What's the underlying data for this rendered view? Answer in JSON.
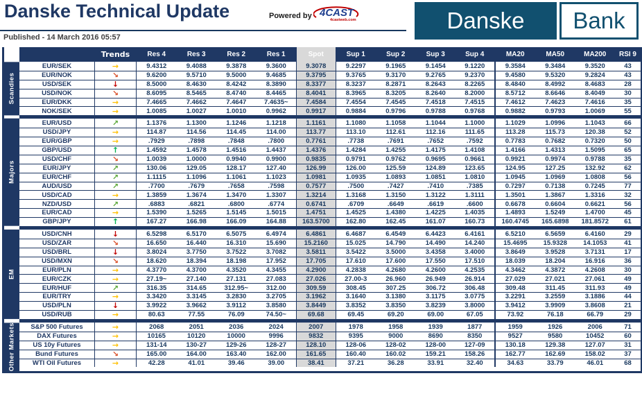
{
  "header": {
    "title": "Danske Technical Update",
    "published": "Published - 14 March 2016 05:57",
    "powered_by": "Powered by",
    "fourcast_logo": {
      "text": "4CAST",
      "sub": "4castweb.com"
    },
    "bank_logo": {
      "left": "Danske",
      "right": "Bank"
    }
  },
  "colors": {
    "navy": "#1F3864",
    "spot_header_bg": "#1c1c1c",
    "spot_cell_bg": "#D9D9D9",
    "logo_navy": "#11506F",
    "arrow_up": "#00B050",
    "arrow_up_right": "#5BA839",
    "arrow_right": "#FFC000",
    "arrow_down_right": "#D9512C",
    "arrow_down": "#C00000"
  },
  "trend_glyphs": {
    "up": "↑",
    "up-right": "↗",
    "right": "→",
    "down-right": "↘",
    "down": "↓"
  },
  "table": {
    "columns": [
      "Trends",
      "Res 4",
      "Res 3",
      "Res 2",
      "Res 1",
      "Spot",
      "Sup 1",
      "Sup 2",
      "Sup 3",
      "Sup 4",
      "MA20",
      "MA50",
      "MA200",
      "RSI 9"
    ],
    "groups": [
      {
        "label": "Scandies",
        "rows": [
          {
            "name": "EUR/SEK",
            "trend": "right",
            "values": [
              "9.4312",
              "9.4088",
              "9.3878",
              "9.3600",
              "9.3078",
              "9.2297",
              "9.1965",
              "9.1454",
              "9.1220",
              "9.3584",
              "9.3484",
              "9.3520",
              "43"
            ]
          },
          {
            "name": "EUR/NOK",
            "trend": "down-right",
            "values": [
              "9.6200",
              "9.5710",
              "9.5000",
              "9.4685",
              "9.3795",
              "9.3765",
              "9.3170",
              "9.2765",
              "9.2370",
              "9.4580",
              "9.5320",
              "9.2824",
              "43"
            ]
          },
          {
            "name": "USD/SEK",
            "trend": "down",
            "values": [
              "8.5000",
              "8.4630",
              "8.4242",
              "8.3890",
              "8.3377",
              "8.3237",
              "8.2871",
              "8.2643",
              "8.2265",
              "8.4840",
              "8.4992",
              "8.4683",
              "28"
            ]
          },
          {
            "name": "USD/NOK",
            "trend": "down-right",
            "values": [
              "8.6095",
              "8.5465",
              "8.4740",
              "8.4465",
              "8.4041",
              "8.3965",
              "8.3205",
              "8.2640",
              "8.2000",
              "8.5712",
              "8.6646",
              "8.4049",
              "30"
            ]
          },
          {
            "name": "EUR/DKK",
            "trend": "right",
            "values": [
              "7.4665",
              "7.4662",
              "7.4647",
              "7.4635~",
              "7.4584",
              "7.4554",
              "7.4545",
              "7.4518",
              "7.4515",
              "7.4612",
              "7.4623",
              "7.4616",
              "35"
            ]
          },
          {
            "name": "NOK/SEK",
            "trend": "right",
            "values": [
              "1.0085",
              "1.0027",
              "1.0010",
              "0.9962",
              "0.9917",
              "0.9884",
              "0.9796",
              "0.9788",
              "0.9768",
              "0.9882",
              "0.9793",
              "1.0069",
              "55"
            ]
          }
        ]
      },
      {
        "label": "Majors",
        "rows": [
          {
            "name": "EUR/USD",
            "trend": "up-right",
            "values": [
              "1.1376",
              "1.1300",
              "1.1246",
              "1.1218",
              "1.1161",
              "1.1080",
              "1.1058",
              "1.1044",
              "1.1000",
              "1.1029",
              "1.0996",
              "1.1043",
              "66"
            ]
          },
          {
            "name": "USD/JPY",
            "trend": "right",
            "values": [
              "114.87",
              "114.56",
              "114.45",
              "114.00",
              "113.77",
              "113.10",
              "112.61",
              "112.16",
              "111.65",
              "113.28",
              "115.73",
              "120.38",
              "52"
            ]
          },
          {
            "name": "EUR/GBP",
            "trend": "right",
            "values": [
              ".7929",
              ".7898",
              ".7848",
              ".7800",
              "0.7761",
              ".7738",
              ".7691",
              ".7652",
              ".7592",
              "0.7783",
              "0.7682",
              "0.7320",
              "50"
            ]
          },
          {
            "name": "GBP/USD",
            "trend": "up",
            "values": [
              "1.4592",
              "1.4578",
              "1.4516",
              "1.4437",
              "1.4376",
              "1.4284",
              "1.4255",
              "1.4175",
              "1.4108",
              "1.4166",
              "1.4313",
              "1.5095",
              "65"
            ]
          },
          {
            "name": "USD/CHF",
            "trend": "down-right",
            "values": [
              "1.0039",
              "1.0000",
              "0.9940",
              "0.9900",
              "0.9835",
              "0.9791",
              "0.9762",
              "0.9695",
              "0.9661",
              "0.9921",
              "0.9974",
              "0.9788",
              "35"
            ]
          },
          {
            "name": "EUR/JPY",
            "trend": "up-right",
            "values": [
              "130.06",
              "129.05",
              "128.17",
              "127.40",
              "126.99",
              "126.00",
              "125.59",
              "124.89",
              "123.65",
              "124.95",
              "127.25",
              "132.92",
              "62"
            ]
          },
          {
            "name": "EUR/CHF",
            "trend": "up-right",
            "values": [
              "1.1115",
              "1.1096",
              "1.1061",
              "1.1023",
              "1.0981",
              "1.0935",
              "1.0893",
              "1.0851",
              "1.0810",
              "1.0945",
              "1.0969",
              "1.0808",
              "56"
            ]
          },
          {
            "name": "AUD/USD",
            "trend": "up-right",
            "values": [
              ".7700",
              ".7679",
              ".7658",
              ".7598",
              "0.7577",
              ".7500",
              ".7427",
              ".7410",
              ".7385",
              "0.7297",
              "0.7138",
              "0.7245",
              "77"
            ]
          },
          {
            "name": "USD/CAD",
            "trend": "right",
            "values": [
              "1.3859",
              "1.3674",
              "1.3470",
              "1.3307",
              "1.3214",
              "1.3168",
              "1.3150",
              "1.3122",
              "1.3111",
              "1.3501",
              "1.3867",
              "1.3316",
              "32"
            ]
          },
          {
            "name": "NZD/USD",
            "trend": "up-right",
            "values": [
              ".6883",
              ".6821",
              ".6800",
              ".6774",
              "0.6741",
              ".6709",
              ".6649",
              ".6619",
              ".6600",
              "0.6678",
              "0.6604",
              "0.6621",
              "56"
            ]
          },
          {
            "name": "EUR/CAD",
            "trend": "right",
            "values": [
              "1.5390",
              "1.5265",
              "1.5145",
              "1.5015",
              "1.4751",
              "1.4525",
              "1.4380",
              "1.4225",
              "1.4035",
              "1.4893",
              "1.5249",
              "1.4700",
              "45"
            ]
          },
          {
            "name": "GBP/JPY",
            "trend": "up",
            "values": [
              "167.27",
              "166.98",
              "166.09",
              "164.88",
              "163.5700",
              "162.80",
              "162.45",
              "161.07",
              "160.73",
              "160.4745",
              "165.6898",
              "181.8572",
              "61"
            ]
          }
        ]
      },
      {
        "label": "EM",
        "rows": [
          {
            "name": "USD/CNH",
            "trend": "down",
            "values": [
              "6.5298",
              "6.5170",
              "6.5075",
              "6.4974",
              "6.4861",
              "6.4687",
              "6.4549",
              "6.4423",
              "6.4161",
              "6.5210",
              "6.5659",
              "6.4160",
              "29"
            ]
          },
          {
            "name": "USD/ZAR",
            "trend": "down-right",
            "values": [
              "16.650",
              "16.440",
              "16.310",
              "15.690",
              "15.2160",
              "15.025",
              "14.790",
              "14.490",
              "14.240",
              "15.4695",
              "15.9328",
              "14.1053",
              "41"
            ]
          },
          {
            "name": "USD/BRL",
            "trend": "down",
            "values": [
              "3.8024",
              "3.7750",
              "3.7522",
              "3.7082",
              "3.5811",
              "3.5422",
              "3.5000",
              "3.4358",
              "3.4000",
              "3.8649",
              "3.9528",
              "3.7131",
              "17"
            ]
          },
          {
            "name": "USD/MXN",
            "trend": "down-right",
            "values": [
              "18.620",
              "18.394",
              "18.198",
              "17.952",
              "17.705",
              "17.610",
              "17.600",
              "17.550",
              "17.510",
              "18.039",
              "18.204",
              "16.916",
              "36"
            ]
          },
          {
            "name": "EUR/PLN",
            "trend": "right",
            "values": [
              "4.3770",
              "4.3700",
              "4.3520",
              "4.3455",
              "4.2900",
              "4.2838",
              "4.2680",
              "4.2600",
              "4.2535",
              "4.3462",
              "4.3872",
              "4.2608",
              "30"
            ]
          },
          {
            "name": "EUR/CZK",
            "trend": "right",
            "values": [
              "27.19~",
              "27.140",
              "27.131",
              "27.083",
              "27.026",
              "27.00-3",
              "26.960",
              "26.949",
              "26.914",
              "27.029",
              "27.021",
              "27.061",
              "49"
            ]
          },
          {
            "name": "EUR/HUF",
            "trend": "up-right",
            "values": [
              "316.35",
              "314.65",
              "312.95~",
              "312.00",
              "309.59",
              "308.45",
              "307.25",
              "306.72",
              "306.48",
              "309.48",
              "311.45",
              "311.93",
              "49"
            ]
          },
          {
            "name": "EUR/TRY",
            "trend": "right",
            "values": [
              "3.3420",
              "3.3145",
              "3.2830",
              "3.2705",
              "3.1962",
              "3.1640",
              "3.1380",
              "3.1175",
              "3.0775",
              "3.2291",
              "3.2559",
              "3.1886",
              "44"
            ]
          },
          {
            "name": "USD/PLN",
            "trend": "down",
            "values": [
              "3.9922",
              "3.9662",
              "3.9112",
              "3.8580",
              "3.8449",
              "3.8352",
              "3.8350",
              "3.8239",
              "3.8000",
              "3.9412",
              "3.9909",
              "3.8608",
              "21"
            ]
          },
          {
            "name": "USD/RUB",
            "trend": "right",
            "values": [
              "80.63",
              "77.55",
              "76.09",
              "74.50~",
              "69.68",
              "69.45",
              "69.20",
              "69.00",
              "67.05",
              "73.92",
              "76.18",
              "66.79",
              "29"
            ]
          }
        ]
      },
      {
        "label": "Other Markets",
        "rows": [
          {
            "name": "S&P 500 Futures",
            "trend": "right",
            "values": [
              "2068",
              "2051",
              "2036",
              "2024",
              "2007",
              "1978",
              "1958",
              "1939",
              "1877",
              "1959",
              "1926",
              "2006",
              "71"
            ]
          },
          {
            "name": "DAX Futures",
            "trend": "right",
            "values": [
              "10165",
              "10120",
              "10000",
              "9996",
              "9832",
              "9395",
              "9000",
              "8690",
              "8350",
              "9527",
              "9580",
              "10452",
              "60"
            ]
          },
          {
            "name": "US 10y Futures",
            "trend": "right",
            "values": [
              "131-14",
              "130-27",
              "129-26",
              "128-27",
              "128.10",
              "128-06",
              "128-02",
              "128-00",
              "127-09",
              "130.18",
              "129.38",
              "127.07",
              "31"
            ]
          },
          {
            "name": "Bund Futures",
            "trend": "down-right",
            "values": [
              "165.00",
              "164.00",
              "163.40",
              "162.00",
              "161.65",
              "160.40",
              "160.02",
              "159.21",
              "158.26",
              "162.77",
              "162.69",
              "158.02",
              "37"
            ]
          },
          {
            "name": "WTI Oil Futures",
            "trend": "right",
            "values": [
              "42.28",
              "41.01",
              "39.46",
              "39.00",
              "38.41",
              "37.21",
              "36.28",
              "33.91",
              "32.40",
              "34.63",
              "33.79",
              "46.01",
              "68"
            ]
          }
        ]
      }
    ]
  }
}
